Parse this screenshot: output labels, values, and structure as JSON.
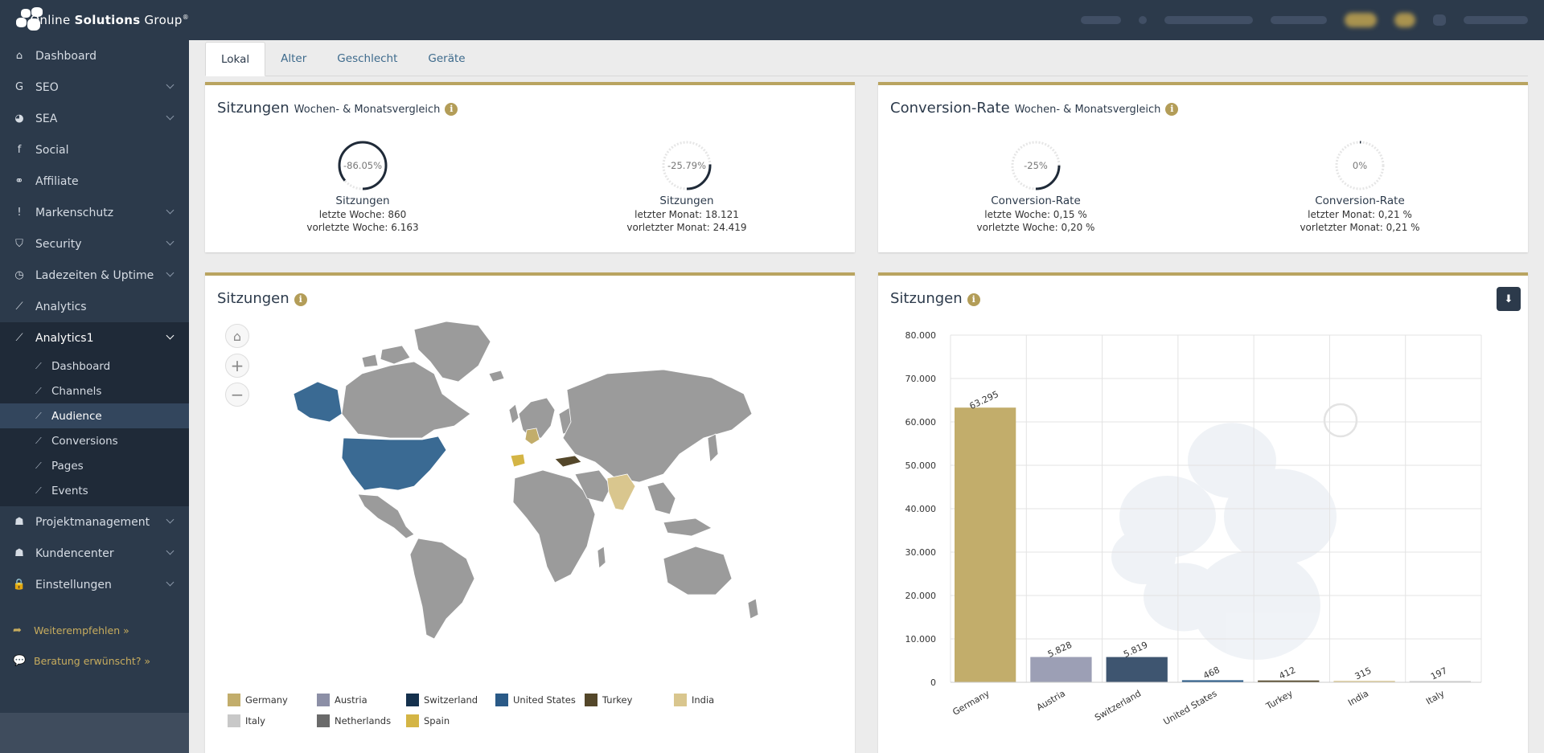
{
  "brand": {
    "name_first": "Online ",
    "name_bold": "Solutions",
    "name_last": " Group",
    "reg": "®"
  },
  "sidebar": {
    "items": [
      {
        "label": "Dashboard",
        "icon": "home-icon",
        "glyph": "⌂",
        "chevron": false
      },
      {
        "label": "SEO",
        "icon": "google-icon",
        "glyph": "G",
        "chevron": true
      },
      {
        "label": "SEA",
        "icon": "pie-chart-icon",
        "glyph": "◕",
        "chevron": true
      },
      {
        "label": "Social",
        "icon": "facebook-icon",
        "glyph": "f",
        "chevron": false
      },
      {
        "label": "Affiliate",
        "icon": "handshake-icon",
        "glyph": "⚭",
        "chevron": false
      },
      {
        "label": "Markenschutz",
        "icon": "exclamation-icon",
        "glyph": "!",
        "chevron": true
      },
      {
        "label": "Security",
        "icon": "shield-icon",
        "glyph": "⛉",
        "chevron": true
      },
      {
        "label": "Ladezeiten & Uptime",
        "icon": "clock-icon",
        "glyph": "◷",
        "chevron": true
      },
      {
        "label": "Analytics",
        "icon": "line-chart-icon",
        "glyph": "⟋",
        "chevron": false
      },
      {
        "label": "Analytics1",
        "icon": "line-chart-icon",
        "glyph": "⟋",
        "chevron": true
      }
    ],
    "subitems": [
      "Dashboard",
      "Channels",
      "Audience",
      "Conversions",
      "Pages",
      "Events"
    ],
    "items_after": [
      {
        "label": "Projektmanagement",
        "icon": "users-icon",
        "glyph": "☗",
        "chevron": true
      },
      {
        "label": "Kundencenter",
        "icon": "users-icon",
        "glyph": "☗",
        "chevron": true
      },
      {
        "label": "Einstellungen",
        "icon": "lock-icon",
        "glyph": "🔒",
        "chevron": true
      }
    ],
    "promos": [
      {
        "label": "Weiterempfehlen »",
        "icon": "share-icon",
        "glyph": "➦"
      },
      {
        "label": "Beratung erwünscht? »",
        "icon": "comments-icon",
        "glyph": "💬"
      }
    ]
  },
  "tabs": [
    "Lokal",
    "Alter",
    "Geschlecht",
    "Geräte"
  ],
  "sessions_card": {
    "title": "Sitzungen",
    "subtitle": "Wochen- & Monatsvergleich",
    "kpis": [
      {
        "value": "-86.05%",
        "pct": -86.05,
        "label": "Sitzungen",
        "line1": "letzte Woche: 860",
        "line2": "vorletzte Woche: 6.163"
      },
      {
        "value": "-25.79%",
        "pct": -25.79,
        "label": "Sitzungen",
        "line1": "letzter Monat: 18.121",
        "line2": "vorletzter Monat: 24.419"
      }
    ]
  },
  "conversion_card": {
    "title": "Conversion-Rate",
    "subtitle": "Wochen- & Monatsvergleich",
    "kpis": [
      {
        "value": "-25%",
        "pct": -25,
        "label": "Conversion-Rate",
        "line1": "letzte Woche: 0,15 %",
        "line2": "vorletzte Woche: 0,20 %"
      },
      {
        "value": "0%",
        "pct": 0,
        "label": "Conversion-Rate",
        "line1": "letzter Monat: 0,21 %",
        "line2": "vorletzter Monat: 0,21 %"
      }
    ]
  },
  "map_card": {
    "title": "Sitzungen",
    "legend": [
      {
        "name": "Germany",
        "color": "#c2ad6b"
      },
      {
        "name": "Austria",
        "color": "#8c8fa6"
      },
      {
        "name": "Switzerland",
        "color": "#15314d"
      },
      {
        "name": "United States",
        "color": "#2a5a87"
      },
      {
        "name": "Turkey",
        "color": "#54472a"
      },
      {
        "name": "India",
        "color": "#d9c68e"
      },
      {
        "name": "Italy",
        "color": "#c8c8c8"
      },
      {
        "name": "Netherlands",
        "color": "#6a6a6a"
      },
      {
        "name": "Spain",
        "color": "#d4b545"
      }
    ]
  },
  "bar_card": {
    "title": "Sitzungen",
    "chart_data": {
      "type": "bar",
      "categories": [
        "Germany",
        "Austria",
        "Switzerland",
        "United States",
        "Turkey",
        "India",
        "Italy"
      ],
      "values": [
        63295,
        5828,
        5819,
        468,
        412,
        315,
        197
      ],
      "value_labels": [
        "63.295",
        "5.828",
        "5.819",
        "468",
        "412",
        "315",
        "197"
      ],
      "colors": [
        "#c2ad6b",
        "#9c9fb5",
        "#3e5570",
        "#2a5a87",
        "#54472a",
        "#d9c68e",
        "#c8c8c8"
      ],
      "ylim": [
        0,
        80000
      ],
      "yticks": [
        "0",
        "10.000",
        "20.000",
        "30.000",
        "40.000",
        "50.000",
        "60.000",
        "70.000",
        "80.000"
      ],
      "grid": true
    }
  }
}
